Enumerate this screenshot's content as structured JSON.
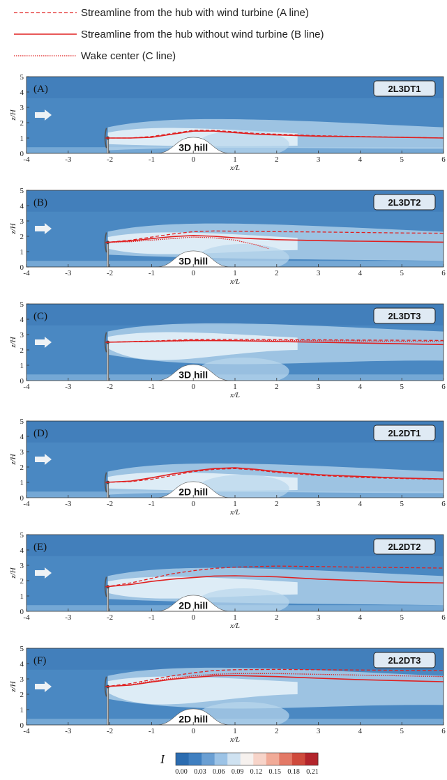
{
  "legend": [
    {
      "label": "Streamline from the hub with wind turbine (A line)",
      "style": "dashed",
      "color": "#e02020"
    },
    {
      "label": "Streamline from the hub without wind turbine (B line)",
      "style": "solid",
      "color": "#e02020"
    },
    {
      "label": "Wake center (C line)",
      "style": "dotted",
      "color": "#e02020"
    }
  ],
  "colors": {
    "field_base": "#4a88c2",
    "field_light": "#b9d7ec",
    "field_white": "#eef6fb",
    "streamline": "#e02020",
    "hill": "#ffffff"
  },
  "chart_data": [
    {
      "type": "heatmap",
      "panel": "(A)",
      "case": "2L3DT1",
      "hill": "3D hill",
      "xlabel": "x/L",
      "ylabel": "z/H",
      "xlim": [
        -4,
        6
      ],
      "ylim": [
        0,
        5
      ],
      "xticks": [
        "-4",
        "-3",
        "-2",
        "-1",
        "0",
        "1",
        "2",
        "3",
        "4",
        "5",
        "6"
      ],
      "yticks": [
        "0",
        "1",
        "2",
        "3",
        "4",
        "5"
      ],
      "hub_height": 1,
      "series": [
        {
          "name": "A line",
          "style": "dashed",
          "x": [
            -2.1,
            -1.5,
            -1,
            -0.5,
            0,
            0.5,
            1,
            1.5,
            2,
            3,
            4,
            5,
            6
          ],
          "y": [
            1.0,
            1.0,
            1.1,
            1.3,
            1.5,
            1.5,
            1.4,
            1.3,
            1.25,
            1.15,
            1.1,
            1.05,
            1.0
          ]
        },
        {
          "name": "B line",
          "style": "solid",
          "x": [
            -2.1,
            -1.5,
            -1,
            -0.5,
            0,
            0.5,
            1,
            1.5,
            2,
            3,
            4,
            5,
            6
          ],
          "y": [
            1.0,
            1.0,
            1.05,
            1.25,
            1.45,
            1.45,
            1.35,
            1.25,
            1.2,
            1.12,
            1.08,
            1.04,
            1.0
          ]
        }
      ]
    },
    {
      "type": "heatmap",
      "panel": "(B)",
      "case": "2L3DT2",
      "hill": "3D hill",
      "xlabel": "x/L",
      "ylabel": "z/H",
      "xlim": [
        -4,
        6
      ],
      "ylim": [
        0,
        5
      ],
      "xticks": [
        "-4",
        "-3",
        "-2",
        "-1",
        "0",
        "1",
        "2",
        "3",
        "4",
        "5",
        "6"
      ],
      "yticks": [
        "0",
        "1",
        "2",
        "3",
        "4",
        "5"
      ],
      "hub_height": 1.6,
      "series": [
        {
          "name": "A line",
          "style": "dashed",
          "x": [
            -2.1,
            -1.5,
            -1,
            -0.5,
            0,
            0.5,
            1,
            2,
            3,
            4,
            5,
            6
          ],
          "y": [
            1.6,
            1.75,
            1.95,
            2.15,
            2.3,
            2.35,
            2.33,
            2.3,
            2.28,
            2.25,
            2.22,
            2.2
          ]
        },
        {
          "name": "B line",
          "style": "solid",
          "x": [
            -2.1,
            -1.5,
            -1,
            -0.5,
            0,
            0.5,
            1,
            2,
            3,
            4,
            5,
            6
          ],
          "y": [
            1.6,
            1.7,
            1.85,
            1.98,
            2.05,
            2.0,
            1.9,
            1.78,
            1.72,
            1.68,
            1.65,
            1.62
          ]
        },
        {
          "name": "C line",
          "style": "dotted",
          "x": [
            -2.1,
            -1.5,
            -1,
            -0.5,
            0,
            0.5,
            1,
            1.5,
            1.8
          ],
          "y": [
            1.6,
            1.65,
            1.75,
            1.85,
            1.95,
            1.9,
            1.75,
            1.45,
            1.2
          ]
        }
      ]
    },
    {
      "type": "heatmap",
      "panel": "(C)",
      "case": "2L3DT3",
      "hill": "3D hill",
      "xlabel": "x/L",
      "ylabel": "z/H",
      "xlim": [
        -4,
        6
      ],
      "ylim": [
        0,
        5
      ],
      "xticks": [
        "-4",
        "-3",
        "-2",
        "-1",
        "0",
        "1",
        "2",
        "3",
        "4",
        "5",
        "6"
      ],
      "yticks": [
        "0",
        "1",
        "2",
        "3",
        "4",
        "5"
      ],
      "hub_height": 2.5,
      "series": [
        {
          "name": "A line",
          "style": "dashed",
          "x": [
            -2.1,
            -1,
            0,
            1,
            2,
            3,
            4,
            5,
            6
          ],
          "y": [
            2.5,
            2.58,
            2.68,
            2.7,
            2.68,
            2.66,
            2.64,
            2.63,
            2.62
          ]
        },
        {
          "name": "B line",
          "style": "solid",
          "x": [
            -2.1,
            -1,
            0,
            1,
            2,
            3,
            4,
            5,
            6
          ],
          "y": [
            2.5,
            2.56,
            2.62,
            2.6,
            2.55,
            2.5,
            2.45,
            2.4,
            2.35
          ]
        },
        {
          "name": "C line",
          "style": "dotted",
          "x": [
            -2.1,
            -1,
            0,
            1,
            2,
            3,
            4,
            5,
            6
          ],
          "y": [
            2.5,
            2.55,
            2.6,
            2.62,
            2.62,
            2.6,
            2.58,
            2.56,
            2.55
          ]
        }
      ]
    },
    {
      "type": "heatmap",
      "panel": "(D)",
      "case": "2L2DT1",
      "hill": "2D hill",
      "xlabel": "x/L",
      "ylabel": "z/H",
      "xlim": [
        -4,
        6
      ],
      "ylim": [
        0,
        5
      ],
      "xticks": [
        "-4",
        "-3",
        "-2",
        "-1",
        "0",
        "1",
        "2",
        "3",
        "4",
        "5",
        "6"
      ],
      "yticks": [
        "0",
        "1",
        "2",
        "3",
        "4",
        "5"
      ],
      "hub_height": 1,
      "series": [
        {
          "name": "A line",
          "style": "dashed",
          "x": [
            -2.1,
            -1.5,
            -1,
            -0.5,
            0,
            0.5,
            1,
            1.5,
            2,
            3,
            4,
            5,
            6
          ],
          "y": [
            1.0,
            1.05,
            1.2,
            1.45,
            1.7,
            1.85,
            1.9,
            1.8,
            1.65,
            1.45,
            1.32,
            1.25,
            1.2
          ]
        },
        {
          "name": "B line",
          "style": "solid",
          "x": [
            -2.1,
            -1.5,
            -1,
            -0.5,
            0,
            0.5,
            1,
            1.5,
            2,
            3,
            4,
            5,
            6
          ],
          "y": [
            1.0,
            1.08,
            1.3,
            1.55,
            1.75,
            1.9,
            1.95,
            1.85,
            1.7,
            1.5,
            1.38,
            1.28,
            1.22
          ]
        }
      ]
    },
    {
      "type": "heatmap",
      "panel": "(E)",
      "case": "2L2DT2",
      "hill": "2D hill",
      "xlabel": "x/L",
      "ylabel": "z/H",
      "xlim": [
        -4,
        6
      ],
      "ylim": [
        0,
        5
      ],
      "xticks": [
        "-4",
        "-3",
        "-2",
        "-1",
        "0",
        "1",
        "2",
        "3",
        "4",
        "5",
        "6"
      ],
      "yticks": [
        "0",
        "1",
        "2",
        "3",
        "4",
        "5"
      ],
      "hub_height": 1.6,
      "series": [
        {
          "name": "A line",
          "style": "dashed",
          "x": [
            -2.1,
            -1.5,
            -1,
            -0.5,
            0,
            0.5,
            1,
            2,
            3,
            4,
            5,
            6
          ],
          "y": [
            1.6,
            1.85,
            2.15,
            2.45,
            2.65,
            2.8,
            2.88,
            2.95,
            2.92,
            2.88,
            2.85,
            2.82
          ]
        },
        {
          "name": "B line",
          "style": "solid",
          "x": [
            -2.1,
            -1.5,
            -1,
            -0.5,
            0,
            0.5,
            1,
            2,
            3,
            4,
            5,
            6
          ],
          "y": [
            1.6,
            1.75,
            1.95,
            2.1,
            2.2,
            2.3,
            2.32,
            2.25,
            2.1,
            2.0,
            1.9,
            1.85
          ]
        }
      ]
    },
    {
      "type": "heatmap",
      "panel": "(F)",
      "case": "2L2DT3",
      "hill": "2D hill",
      "xlabel": "x/L",
      "ylabel": "z/H",
      "xlim": [
        -4,
        6
      ],
      "ylim": [
        0,
        5
      ],
      "xticks": [
        "-4",
        "-3",
        "-2",
        "-1",
        "0",
        "1",
        "2",
        "3",
        "4",
        "5",
        "6"
      ],
      "yticks": [
        "0",
        "1",
        "2",
        "3",
        "4",
        "5"
      ],
      "hub_height": 2.5,
      "series": [
        {
          "name": "A line",
          "style": "dashed",
          "x": [
            -2.1,
            -1.5,
            -1,
            -0.5,
            0,
            0.5,
            1,
            2,
            3,
            4,
            5,
            6
          ],
          "y": [
            2.5,
            2.7,
            2.95,
            3.2,
            3.4,
            3.55,
            3.6,
            3.62,
            3.6,
            3.58,
            3.56,
            3.55
          ]
        },
        {
          "name": "B line",
          "style": "solid",
          "x": [
            -2.1,
            -1.5,
            -1,
            -0.5,
            0,
            0.5,
            1,
            2,
            3,
            4,
            5,
            6
          ],
          "y": [
            2.5,
            2.6,
            2.8,
            2.98,
            3.1,
            3.2,
            3.22,
            3.15,
            3.05,
            2.95,
            2.88,
            2.82
          ]
        },
        {
          "name": "C line",
          "style": "dotted",
          "x": [
            -2.1,
            -1.5,
            -1,
            -0.5,
            0,
            0.5,
            1,
            2,
            3,
            4,
            5,
            6
          ],
          "y": [
            2.5,
            2.62,
            2.85,
            3.05,
            3.2,
            3.3,
            3.35,
            3.35,
            3.3,
            3.25,
            3.2,
            3.15
          ]
        }
      ]
    }
  ],
  "colorbar": {
    "label": "I",
    "ticks": [
      "0.00",
      "0.03",
      "0.06",
      "0.09",
      "0.12",
      "0.15",
      "0.18",
      "0.21"
    ],
    "colors": [
      "#2b6cb0",
      "#3f7fc0",
      "#6a9fd3",
      "#9cc3e6",
      "#cfe2f1",
      "#f6f1ee",
      "#f7d4c9",
      "#f1ab98",
      "#e37966",
      "#cf4a3c",
      "#b3242b"
    ]
  }
}
